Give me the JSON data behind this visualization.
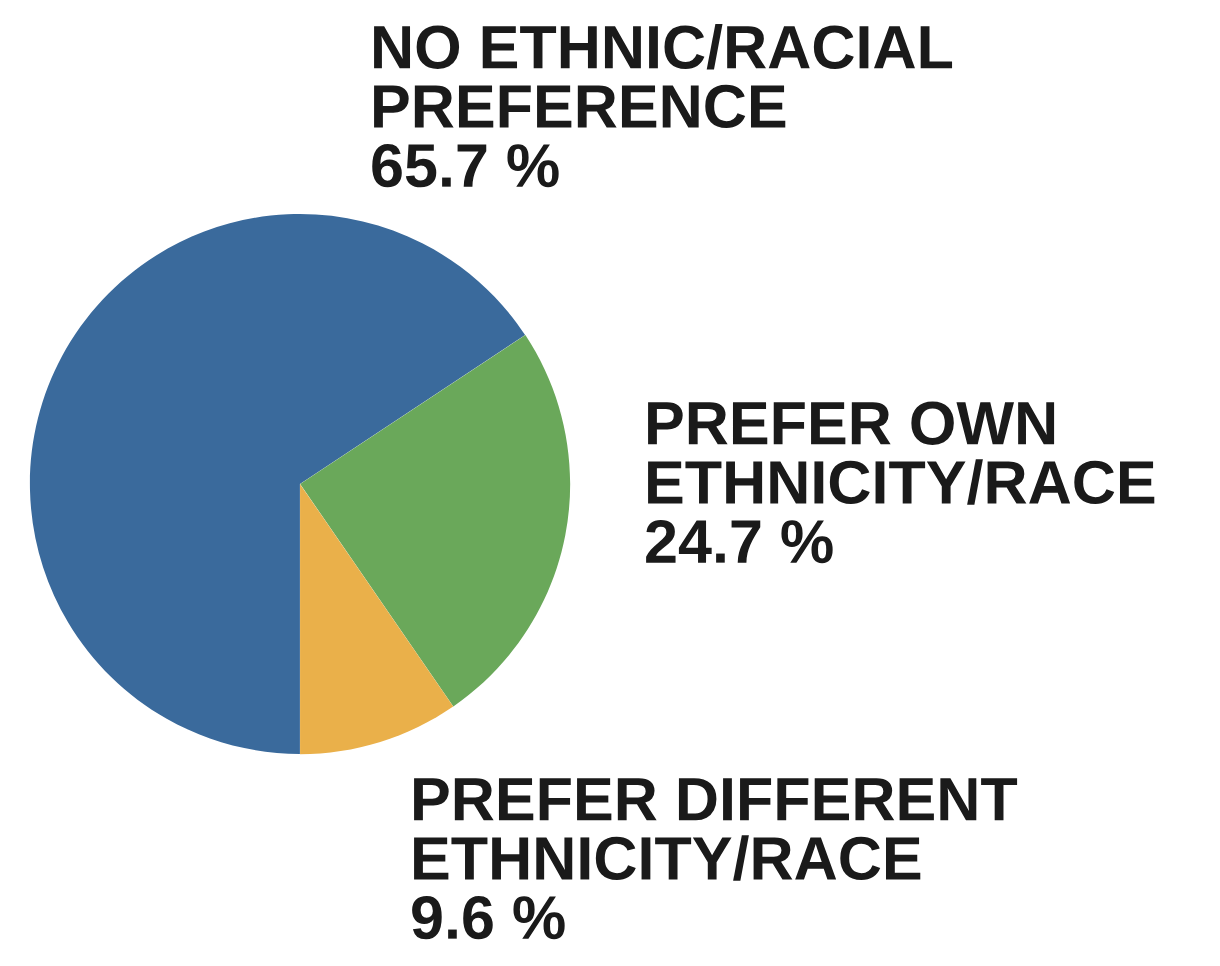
{
  "chart_data": {
    "type": "pie",
    "categories": [
      "NO ETHNIC/RACIAL\nPREFERENCE",
      "PREFER OWN\nETHNICITY/RACE",
      "PREFER DIFFERENT\nETHNICITY/RACE"
    ],
    "values": [
      65.7,
      24.7,
      9.6
    ],
    "colors": [
      "#3a6a9c",
      "#6aa85a",
      "#eab04a"
    ],
    "value_labels": [
      "65.7 %",
      "24.7 %",
      "9.6 %"
    ]
  }
}
